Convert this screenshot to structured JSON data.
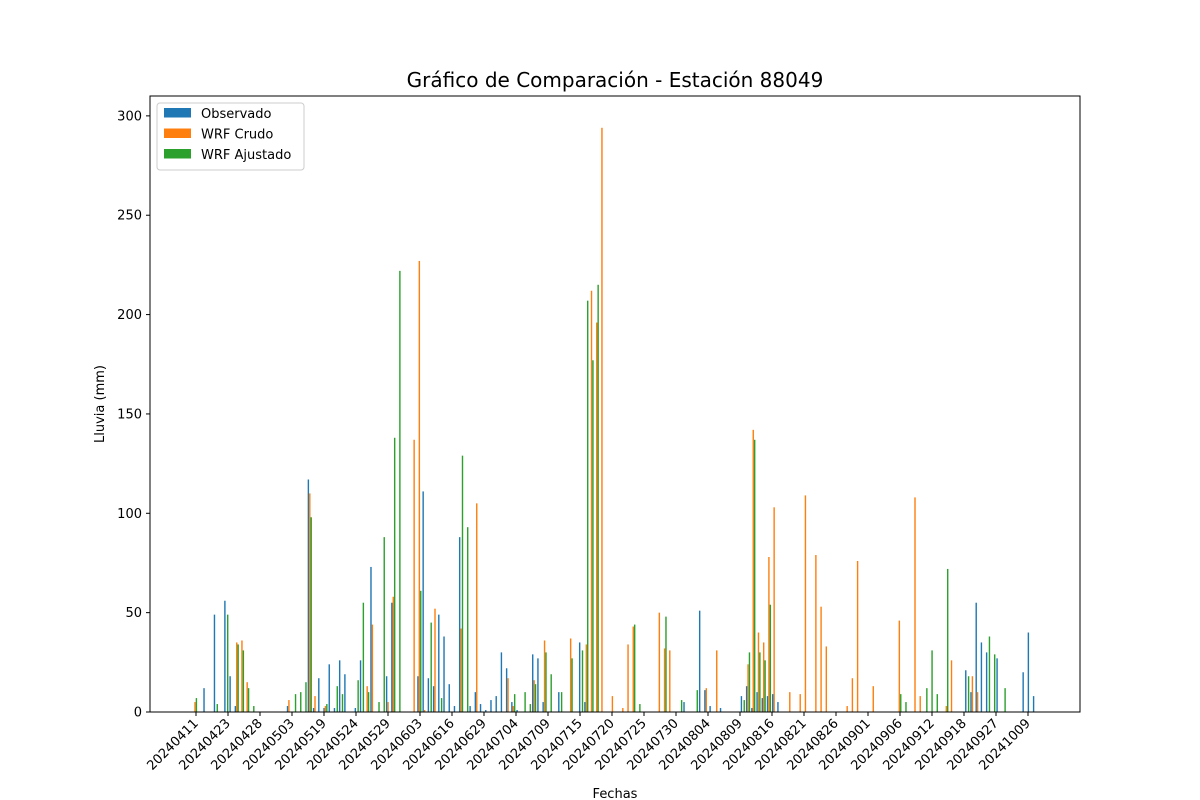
{
  "chart_data": {
    "type": "bar",
    "title": "Gráfico de Comparación - Estación 88049",
    "xlabel": "Fechas",
    "ylabel": "Lluvia (mm)",
    "ylim": [
      0,
      310
    ],
    "yticks": [
      0,
      50,
      100,
      150,
      200,
      250,
      300
    ],
    "xtick_labels": [
      "20240411",
      "20240423",
      "20240428",
      "20240503",
      "20240519",
      "20240524",
      "20240529",
      "20240603",
      "20240616",
      "20240629",
      "20240704",
      "20240709",
      "20240715",
      "20240720",
      "20240725",
      "20240730",
      "20240804",
      "20240809",
      "20240816",
      "20240821",
      "20240826",
      "20240901",
      "20240906",
      "20240912",
      "20240918",
      "20240927",
      "20241009"
    ],
    "legend_position": "top-left",
    "colors": {
      "Observado": "#1f77b4",
      "WRF Crudo": "#ff7f0e",
      "WRF Ajustado": "#2ca02c"
    },
    "series": [
      {
        "name": "Observado",
        "values": [
          0,
          0,
          12,
          0,
          49,
          0,
          56,
          18,
          3,
          0,
          0,
          0,
          0,
          0,
          0,
          0,
          0,
          0,
          3,
          0,
          0,
          0,
          117,
          2,
          17,
          2,
          24,
          2,
          26,
          19,
          0,
          2,
          26,
          0,
          73,
          0,
          0,
          18,
          55,
          0,
          0,
          0,
          0,
          18,
          111,
          17,
          13,
          49,
          38,
          14,
          3,
          88,
          0,
          3,
          10,
          4,
          1,
          6,
          8,
          30,
          22,
          5,
          1,
          0,
          0,
          29,
          27,
          5,
          0,
          0,
          10,
          0,
          0,
          0,
          35,
          5,
          0,
          0,
          0,
          0,
          0,
          0,
          0,
          0,
          0,
          0,
          0,
          0,
          0,
          0,
          0,
          0,
          0,
          0,
          5,
          0,
          0,
          51,
          11,
          3,
          0,
          2,
          0,
          0,
          0,
          8,
          13,
          2,
          10,
          7,
          8,
          9,
          5,
          0,
          0,
          0,
          0,
          0,
          0,
          0,
          0,
          0,
          0,
          0,
          0,
          0,
          0,
          0,
          0,
          0,
          0,
          0,
          0,
          0,
          0,
          0,
          0,
          0,
          0,
          0,
          0,
          0,
          0,
          0,
          0,
          0,
          0,
          0,
          21,
          10,
          55,
          35,
          30,
          0,
          27,
          0,
          0,
          0,
          0,
          20,
          40,
          8
        ]
      },
      {
        "name": "WRF Crudo",
        "values": [
          5,
          0,
          0,
          0,
          0,
          0,
          0,
          0,
          35,
          36,
          15,
          0,
          0,
          0,
          0,
          0,
          0,
          0,
          6,
          0,
          0,
          0,
          110,
          8,
          0,
          3,
          0,
          0,
          0,
          0,
          0,
          0,
          0,
          13,
          44,
          0,
          0,
          5,
          58,
          0,
          0,
          0,
          137,
          227,
          1,
          0,
          52,
          0,
          0,
          0,
          0,
          42,
          0,
          0,
          105,
          0,
          0,
          0,
          0,
          0,
          17,
          3,
          0,
          0,
          0,
          16,
          0,
          36,
          0,
          0,
          0,
          0,
          37,
          0,
          0,
          34,
          212,
          196,
          294,
          0,
          8,
          0,
          2,
          34,
          43,
          0,
          0,
          0,
          0,
          50,
          32,
          31,
          0,
          0,
          0,
          0,
          0,
          0,
          12,
          0,
          31,
          0,
          0,
          0,
          0,
          0,
          24,
          142,
          40,
          35,
          78,
          103,
          0,
          0,
          10,
          0,
          9,
          109,
          0,
          79,
          53,
          33,
          0,
          0,
          0,
          3,
          17,
          76,
          0,
          0,
          13,
          0,
          0,
          0,
          0,
          46,
          0,
          0,
          108,
          8,
          0,
          0,
          0,
          0,
          3,
          26,
          0,
          0,
          0,
          18,
          10
        ]
      },
      {
        "name": "WRF Ajustado",
        "values": [
          7,
          0,
          0,
          0,
          4,
          0,
          49,
          0,
          34,
          31,
          12,
          3,
          0,
          0,
          0,
          0,
          0,
          0,
          0,
          9,
          10,
          15,
          98,
          0,
          0,
          4,
          0,
          13,
          9,
          0,
          0,
          16,
          55,
          10,
          0,
          5,
          88,
          0,
          138,
          222,
          0,
          0,
          0,
          61,
          0,
          45,
          0,
          7,
          0,
          0,
          0,
          129,
          93,
          0,
          0,
          0,
          0,
          0,
          0,
          0,
          0,
          9,
          0,
          10,
          4,
          14,
          0,
          30,
          19,
          0,
          10,
          0,
          27,
          0,
          31,
          207,
          177,
          215,
          0,
          0,
          0,
          0,
          0,
          0,
          44,
          4,
          0,
          0,
          0,
          0,
          48,
          0,
          0,
          6,
          0,
          0,
          11,
          0,
          0,
          0,
          0,
          0,
          0,
          0,
          0,
          6,
          30,
          137,
          30,
          26,
          54,
          0,
          0,
          0,
          0,
          0,
          0,
          0,
          0,
          0,
          0,
          0,
          0,
          0,
          0,
          0,
          0,
          0,
          0,
          0,
          0,
          0,
          0,
          0,
          0,
          9,
          5,
          0,
          0,
          0,
          12,
          31,
          9,
          0,
          72,
          0,
          0,
          0,
          18,
          0,
          0,
          0,
          38,
          29,
          0,
          12
        ]
      }
    ]
  }
}
